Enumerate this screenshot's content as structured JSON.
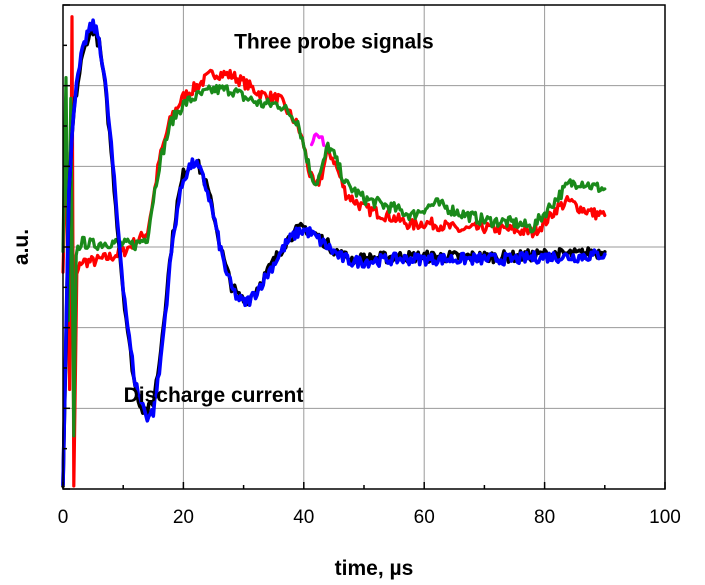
{
  "chart_data": {
    "type": "line",
    "xlabel": "time, µs",
    "ylabel": "a.u.",
    "xlim": [
      0,
      100
    ],
    "ylim": [
      -5,
      5
    ],
    "x_ticks": [
      0,
      20,
      40,
      60,
      80,
      100
    ],
    "y_tick_labels_shown": false,
    "grid": true,
    "annotations": [
      {
        "text": "Three probe signals",
        "x": 45,
        "y": 4.1
      },
      {
        "text": "Discharge current",
        "x": 25,
        "y": -3.2
      }
    ],
    "series": [
      {
        "color": "#ff0000",
        "x": [
          0,
          0.6,
          1.1,
          1.5,
          1.8,
          2.3,
          3,
          5,
          8,
          10,
          12,
          14,
          15,
          16,
          18,
          20,
          22,
          25,
          28,
          30,
          33,
          36,
          39,
          40,
          41,
          42,
          43,
          44,
          45,
          47,
          50,
          55,
          58,
          60,
          63,
          66,
          70,
          75,
          78,
          80,
          82,
          84,
          86,
          88,
          90
        ],
        "y": [
          -0.4,
          2.0,
          -3.0,
          4.8,
          -5.0,
          -0.6,
          -0.3,
          -0.3,
          -0.2,
          -0.1,
          0.1,
          0.3,
          1.0,
          1.8,
          2.7,
          3.1,
          3.3,
          3.6,
          3.55,
          3.4,
          3.15,
          3.05,
          2.5,
          2.1,
          1.5,
          1.2,
          1.5,
          2.0,
          1.8,
          1.1,
          0.8,
          0.6,
          0.45,
          0.5,
          0.45,
          0.35,
          0.4,
          0.35,
          0.3,
          0.5,
          0.8,
          0.95,
          0.8,
          0.7,
          0.65
        ]
      },
      {
        "color": "#1a8a1a",
        "x": [
          0,
          0.5,
          0.9,
          1.3,
          1.8,
          2.2,
          3,
          5,
          8,
          10,
          12,
          14,
          15,
          16,
          18,
          20,
          22,
          25,
          28,
          30,
          33,
          36,
          39,
          40,
          41,
          42,
          43,
          44,
          45,
          47,
          50,
          55,
          58,
          60,
          62,
          64,
          66,
          70,
          75,
          78,
          80,
          82,
          84,
          86,
          88,
          90
        ],
        "y": [
          0,
          3.5,
          -1.5,
          3.0,
          -4.0,
          -0.1,
          0.1,
          0.05,
          0.1,
          0.05,
          0.05,
          0.2,
          1.0,
          1.7,
          2.6,
          2.95,
          3.1,
          3.25,
          3.25,
          3.1,
          2.95,
          2.95,
          2.6,
          2.1,
          1.6,
          1.3,
          1.6,
          2.1,
          1.9,
          1.3,
          1.0,
          0.8,
          0.65,
          0.8,
          0.9,
          0.8,
          0.7,
          0.55,
          0.5,
          0.4,
          0.7,
          1.0,
          1.3,
          1.35,
          1.25,
          1.2
        ]
      },
      {
        "color": "#ff00ff",
        "x": [
          41.3,
          41.8,
          42.3,
          42.8,
          43.3
        ],
        "y": [
          2.1,
          2.3,
          2.25,
          2.3,
          2.1
        ]
      },
      {
        "color": "#000000",
        "x": [
          0,
          0.5,
          1,
          1.5,
          2,
          3,
          4,
          5,
          6,
          7,
          8,
          9,
          10,
          11,
          12,
          13,
          14,
          15,
          16,
          17,
          18,
          19,
          20,
          21,
          22,
          23,
          24,
          25,
          26,
          27,
          28,
          29,
          30,
          31,
          32,
          33,
          34,
          35,
          36,
          37,
          38,
          39,
          40,
          41,
          42,
          43,
          44,
          45,
          46,
          47,
          48,
          50,
          55,
          60,
          65,
          70,
          75,
          80,
          85,
          90
        ],
        "y": [
          -5.0,
          -2.0,
          1.0,
          2.3,
          3.0,
          3.8,
          4.3,
          4.5,
          4.2,
          3.3,
          2.0,
          0.5,
          -0.9,
          -2.0,
          -2.9,
          -3.3,
          -3.4,
          -3.2,
          -2.4,
          -1.2,
          0.0,
          0.9,
          1.5,
          1.7,
          1.8,
          1.55,
          1.2,
          0.7,
          0.1,
          -0.4,
          -0.8,
          -1.0,
          -1.1,
          -1.05,
          -0.9,
          -0.7,
          -0.5,
          -0.3,
          -0.1,
          0.1,
          0.25,
          0.35,
          0.4,
          0.35,
          0.25,
          0.15,
          0.05,
          -0.05,
          -0.15,
          -0.2,
          -0.25,
          -0.25,
          -0.2,
          -0.2,
          -0.2,
          -0.2,
          -0.2,
          -0.15,
          -0.15,
          -0.1
        ]
      },
      {
        "color": "#0000ff",
        "x": [
          0,
          0.5,
          1,
          1.5,
          2,
          3,
          4,
          5,
          6,
          7,
          8,
          9,
          10,
          11,
          12,
          13,
          14,
          15,
          16,
          17,
          18,
          19,
          20,
          21,
          22,
          23,
          24,
          25,
          26,
          27,
          28,
          29,
          30,
          31,
          32,
          33,
          34,
          35,
          36,
          37,
          38,
          39,
          40,
          41,
          42,
          43,
          44,
          45,
          46,
          47,
          48,
          50,
          55,
          60,
          65,
          70,
          75,
          80,
          85,
          90
        ],
        "y": [
          -4.8,
          -1.8,
          1.1,
          2.4,
          3.1,
          3.9,
          4.4,
          4.6,
          4.3,
          3.4,
          2.1,
          0.6,
          -0.8,
          -1.9,
          -2.8,
          -3.2,
          -3.5,
          -3.4,
          -2.6,
          -1.4,
          -0.1,
          0.8,
          1.4,
          1.65,
          1.75,
          1.5,
          1.15,
          0.65,
          0.05,
          -0.45,
          -0.85,
          -1.05,
          -1.15,
          -1.1,
          -0.95,
          -0.75,
          -0.55,
          -0.35,
          -0.15,
          0.05,
          0.2,
          0.3,
          0.35,
          0.3,
          0.2,
          0.1,
          0.0,
          -0.1,
          -0.2,
          -0.25,
          -0.3,
          -0.3,
          -0.25,
          -0.25,
          -0.25,
          -0.25,
          -0.25,
          -0.2,
          -0.2,
          -0.15
        ]
      }
    ]
  }
}
